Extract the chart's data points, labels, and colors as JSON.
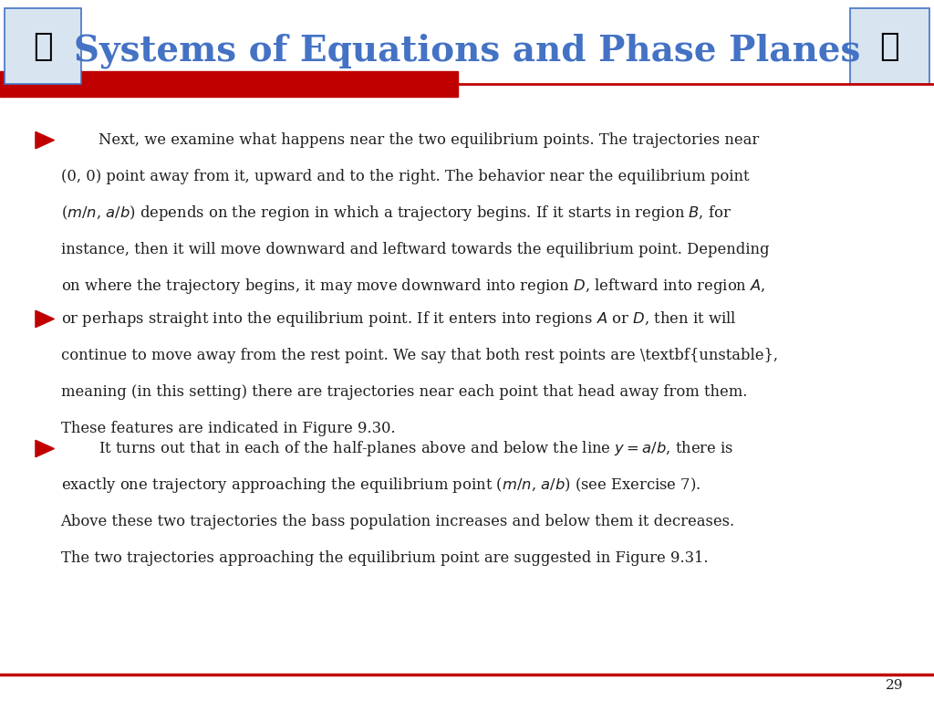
{
  "title": "Systems of Equations and Phase Planes",
  "title_color": "#4472C4",
  "title_fontsize": 28,
  "background_color": "#FFFFFF",
  "red_bar_color": "#C00000",
  "separator_line_color": "#C00000",
  "bullet_color": "#C00000",
  "text_color": "#1F1F1F",
  "page_number": "29",
  "b1_lines": [
    "Next, we examine what happens near the two equilibrium points. The trajectories near",
    "(0, 0) point away from it, upward and to the right. The behavior near the equilibrium point",
    "($m/n$, $a/b$) depends on the region in which a trajectory begins. If it starts in region $B$, for",
    "instance, then it will move downward and leftward towards the equilibrium point. Depending",
    "on where the trajectory begins, it may move downward into region $D$, leftward into region $A$,"
  ],
  "b2_lines": [
    "or perhaps straight into the equilibrium point. If it enters into regions $A$ or $D$, then it will",
    "continue to move away from the rest point. We say that both rest points are \\textbf{unstable},",
    "meaning (in this setting) there are trajectories near each point that head away from them.",
    "These features are indicated in Figure 9.30."
  ],
  "b3_lines": [
    "It turns out that in each of the half-planes above and below the line $y = a/b$, there is",
    "exactly one trajectory approaching the equilibrium point ($m/n$, $a/b$) (see Exercise 7).",
    "Above these two trajectories the bass population increases and below them it decreases.",
    "The two trajectories approaching the equilibrium point are suggested in Figure 9.31."
  ]
}
